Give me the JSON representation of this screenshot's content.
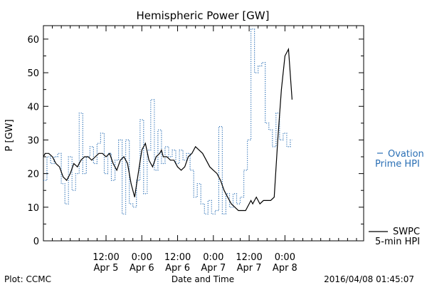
{
  "chart_data": {
    "type": "line",
    "title": "Hemispheric Power [GW]",
    "ylabel": "P [GW]",
    "xlabel": "Date and Time",
    "ylim": [
      0,
      64
    ],
    "xlim": [
      -0.75,
      8.2
    ],
    "y_ticks": [
      0,
      10,
      20,
      30,
      40,
      50,
      60
    ],
    "y_minor_ticks": [
      5,
      15,
      25,
      35,
      45,
      55
    ],
    "x_ticks": [
      {
        "x": 1,
        "time": "12:00",
        "day": "Apr 5"
      },
      {
        "x": 2,
        "time": "0:00",
        "day": "Apr 6"
      },
      {
        "x": 3,
        "time": "12:00",
        "day": "Apr 6"
      },
      {
        "x": 4,
        "time": "0:00",
        "day": "Apr 7"
      },
      {
        "x": 5,
        "time": "12:00",
        "day": "Apr 7"
      },
      {
        "x": 6,
        "time": "0:00",
        "day": "Apr 8"
      }
    ],
    "grid": false,
    "series": [
      {
        "key": "ovation",
        "color": "#2a6fb5",
        "style": "dotted-step",
        "x": [
          -0.75,
          -0.65,
          -0.55,
          -0.45,
          -0.35,
          -0.25,
          -0.15,
          -0.05,
          0.05,
          0.15,
          0.25,
          0.35,
          0.45,
          0.55,
          0.65,
          0.75,
          0.85,
          0.95,
          1.05,
          1.15,
          1.25,
          1.35,
          1.45,
          1.55,
          1.65,
          1.75,
          1.85,
          1.95,
          2.05,
          2.15,
          2.25,
          2.35,
          2.45,
          2.55,
          2.65,
          2.75,
          2.85,
          2.95,
          3.05,
          3.15,
          3.25,
          3.35,
          3.45,
          3.55,
          3.65,
          3.75,
          3.85,
          3.95,
          4.05,
          4.15,
          4.25,
          4.35,
          4.45,
          4.55,
          4.65,
          4.75,
          4.85,
          4.95,
          5.05,
          5.15,
          5.25,
          5.35,
          5.45,
          5.55,
          5.65,
          5.75,
          5.85,
          5.95,
          6.05,
          6.15
        ],
        "y": [
          18,
          25,
          23,
          25,
          26,
          17,
          11,
          25,
          15,
          20,
          38,
          20,
          25,
          28,
          23,
          29,
          32,
          20,
          26,
          18,
          24,
          30,
          8,
          30,
          11,
          10,
          18,
          36,
          14,
          27,
          42,
          21,
          33,
          23,
          28,
          25,
          27,
          23,
          27,
          24,
          26,
          21,
          13,
          17,
          11,
          8,
          12,
          8,
          9,
          34,
          8,
          14,
          10,
          14,
          11,
          13,
          21,
          30,
          63,
          50,
          52,
          53,
          35,
          33,
          28,
          38,
          30,
          32,
          28,
          30
        ],
        "end_x": 6.2
      },
      {
        "key": "swpc",
        "color": "#000000",
        "style": "solid",
        "x": [
          -0.75,
          -0.7,
          -0.6,
          -0.5,
          -0.4,
          -0.3,
          -0.2,
          -0.1,
          0.0,
          0.1,
          0.2,
          0.3,
          0.4,
          0.5,
          0.6,
          0.7,
          0.8,
          0.9,
          1.0,
          1.1,
          1.2,
          1.3,
          1.4,
          1.5,
          1.6,
          1.7,
          1.8,
          1.9,
          2.0,
          2.1,
          2.2,
          2.3,
          2.4,
          2.5,
          2.55,
          2.6,
          2.7,
          2.8,
          2.9,
          3.0,
          3.1,
          3.2,
          3.3,
          3.4,
          3.5,
          3.6,
          3.7,
          3.8,
          3.9,
          4.0,
          4.1,
          4.2,
          4.3,
          4.4,
          4.5,
          4.6,
          4.7,
          4.8,
          4.9,
          5.0,
          5.05,
          5.1,
          5.15,
          5.2,
          5.25,
          5.3,
          5.4,
          5.5,
          5.6,
          5.7,
          5.8,
          5.9,
          6.0,
          6.1,
          6.2
        ],
        "y": [
          25,
          26,
          26,
          25,
          23,
          22,
          19,
          18,
          20,
          23,
          22,
          24,
          25,
          25,
          24,
          25,
          26,
          26,
          25,
          26,
          23,
          21,
          24,
          25,
          23,
          17,
          13,
          20,
          27,
          29,
          24,
          22,
          25,
          26,
          27,
          25,
          25,
          24,
          24,
          22,
          21,
          22,
          25,
          26,
          28,
          27,
          26,
          24,
          22,
          21,
          20,
          18,
          15,
          13,
          11,
          10,
          9,
          9,
          9,
          11,
          12,
          11,
          12,
          13,
          12,
          11,
          12,
          12,
          12,
          13,
          30,
          45,
          55,
          57,
          42
        ]
      }
    ],
    "legend": [
      {
        "label_lines": [
          "Ovation",
          "Prime HPI"
        ],
        "series": "ovation",
        "color": "#2a6fb5",
        "placement": "right"
      },
      {
        "label_lines": [
          "SWPC",
          "5-min HPI"
        ],
        "series": "swpc",
        "color": "#000000",
        "placement": "right-bottom"
      }
    ]
  },
  "footer": {
    "left": "Plot: CCMC",
    "right": "2016/04/08 01:45:07"
  }
}
